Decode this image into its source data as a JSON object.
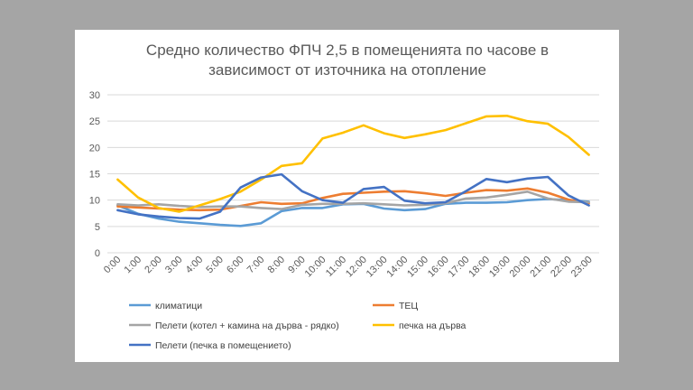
{
  "chart_data": {
    "type": "line",
    "title_lines": [
      "Средно количество ФПЧ 2,5 в помещенията по часове в",
      "зависимост от източника на отопление"
    ],
    "x": [
      "0:00",
      "1:00",
      "2:00",
      "3:00",
      "4:00",
      "5:00",
      "6:00",
      "7:00",
      "8:00",
      "9:00",
      "10:00",
      "11:00",
      "12:00",
      "13:00",
      "14:00",
      "15:00",
      "16:00",
      "17:00",
      "18:00",
      "19:00",
      "20:00",
      "21:00",
      "22:00",
      "23:00"
    ],
    "ylim": [
      0,
      30
    ],
    "yticks": [
      0,
      5,
      10,
      15,
      20,
      25,
      30
    ],
    "grid": true,
    "legend_position": "bottom",
    "series": [
      {
        "name": "климатици",
        "color": "#5b9bd5",
        "values": [
          9.0,
          7.4,
          6.5,
          5.9,
          5.6,
          5.3,
          5.1,
          5.6,
          7.9,
          8.5,
          8.5,
          9.2,
          9.3,
          8.4,
          8.1,
          8.3,
          9.3,
          9.5,
          9.5,
          9.6,
          10.0,
          10.2,
          10.0,
          9.7
        ]
      },
      {
        "name": "ТЕЦ",
        "color": "#ed7d31",
        "values": [
          8.8,
          8.6,
          8.4,
          8.2,
          8.1,
          8.2,
          8.9,
          9.6,
          9.3,
          9.4,
          10.4,
          11.2,
          11.4,
          11.6,
          11.7,
          11.3,
          10.8,
          11.4,
          11.9,
          11.8,
          12.2,
          11.4,
          10.1,
          9.4
        ]
      },
      {
        "name": "Пелети (котел + камина на дърва - рядко)",
        "color": "#a5a5a5",
        "values": [
          9.2,
          9.0,
          9.2,
          8.9,
          8.7,
          8.8,
          8.8,
          8.5,
          8.3,
          9.1,
          9.3,
          9.3,
          9.4,
          9.2,
          9.0,
          9.1,
          9.4,
          10.3,
          10.5,
          11.0,
          11.6,
          10.3,
          9.7,
          9.6
        ]
      },
      {
        "name": "печка на дърва",
        "color": "#ffc000",
        "values": [
          13.9,
          10.5,
          8.5,
          7.8,
          9.0,
          10.2,
          11.6,
          13.9,
          16.5,
          17.0,
          21.7,
          22.8,
          24.2,
          22.7,
          21.8,
          22.5,
          23.3,
          24.6,
          25.9,
          26.0,
          25.0,
          24.5,
          22.0,
          18.6
        ]
      },
      {
        "name": "Пелети (печка в помещението)",
        "color": "#4472c4",
        "values": [
          8.1,
          7.3,
          6.9,
          6.6,
          6.5,
          7.8,
          12.4,
          14.3,
          14.9,
          11.7,
          10.0,
          9.5,
          12.1,
          12.5,
          9.9,
          9.4,
          9.6,
          11.7,
          14.0,
          13.4,
          14.1,
          14.4,
          10.9,
          9.0
        ]
      }
    ]
  }
}
